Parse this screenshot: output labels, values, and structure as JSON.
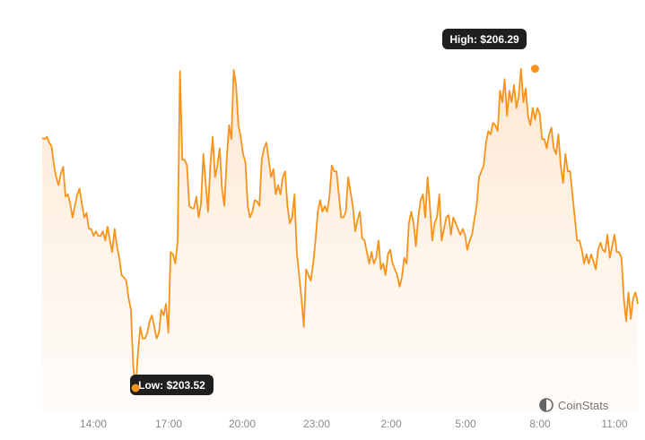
{
  "chart_data": {
    "type": "area",
    "title": "",
    "xlabel": "",
    "ylabel": "",
    "x_ticks": [
      "14:00",
      "17:00",
      "20:00",
      "23:00",
      "2:00",
      "5:00",
      "8:00",
      "11:00"
    ],
    "ylim": [
      203.45,
      206.42
    ],
    "grid": false,
    "legend": "none",
    "series": [
      {
        "color": "#f7931a",
        "values": [
          205.69,
          205.68,
          205.7,
          205.65,
          205.62,
          205.46,
          205.35,
          205.28,
          205.38,
          205.44,
          205.18,
          205.2,
          205.12,
          205.0,
          205.1,
          205.2,
          205.25,
          205.12,
          205.0,
          205.04,
          204.9,
          204.9,
          204.84,
          204.88,
          204.84,
          204.84,
          204.88,
          204.8,
          204.92,
          204.8,
          204.7,
          204.9,
          204.75,
          204.65,
          204.5,
          204.48,
          204.45,
          204.3,
          204.2,
          203.7,
          203.52,
          203.82,
          204.05,
          203.95,
          203.95,
          204.0,
          204.1,
          204.15,
          204.05,
          203.95,
          204.0,
          204.2,
          204.15,
          204.25,
          204.0,
          204.7,
          204.68,
          204.6,
          204.8,
          206.27,
          205.5,
          205.5,
          205.45,
          205.1,
          205.08,
          205.08,
          205.18,
          205.0,
          205.12,
          205.55,
          205.3,
          205.05,
          205.45,
          205.7,
          205.35,
          205.45,
          205.6,
          205.25,
          205.1,
          205.5,
          205.8,
          205.68,
          206.28,
          206.15,
          205.8,
          205.7,
          205.55,
          205.48,
          205.1,
          205.0,
          205.05,
          205.15,
          205.14,
          205.1,
          205.5,
          205.6,
          205.65,
          205.5,
          205.35,
          205.42,
          205.2,
          205.28,
          205.2,
          205.35,
          205.4,
          205.1,
          204.95,
          205.0,
          205.2,
          204.7,
          204.5,
          204.3,
          204.05,
          204.55,
          204.5,
          204.45,
          204.6,
          204.8,
          205.05,
          205.15,
          205.05,
          205.1,
          205.05,
          205.18,
          205.45,
          205.4,
          205.4,
          205.2,
          205.0,
          205.0,
          205.05,
          205.35,
          205.22,
          205.1,
          204.88,
          204.98,
          205.05,
          204.82,
          204.8,
          204.7,
          204.6,
          204.7,
          204.6,
          204.65,
          204.8,
          204.55,
          204.6,
          204.5,
          204.68,
          204.72,
          204.6,
          204.55,
          204.5,
          204.4,
          204.48,
          204.65,
          204.6,
          204.95,
          205.05,
          204.95,
          204.75,
          205.0,
          205.15,
          205.2,
          205.0,
          205.35,
          205.1,
          204.8,
          204.95,
          205.0,
          205.2,
          204.8,
          204.9,
          205.0,
          205.02,
          204.85,
          205.0,
          204.95,
          204.9,
          204.85,
          204.9,
          204.85,
          204.72,
          204.8,
          204.85,
          204.98,
          205.1,
          205.35,
          205.4,
          205.45,
          205.65,
          205.75,
          205.72,
          205.82,
          205.8,
          205.75,
          206.1,
          206.0,
          206.2,
          205.88,
          206.1,
          206.0,
          206.15,
          205.95,
          206.05,
          206.29,
          206.0,
          206.12,
          205.88,
          205.8,
          205.95,
          205.85,
          205.95,
          205.9,
          205.68,
          205.68,
          205.6,
          205.72,
          205.78,
          205.6,
          205.55,
          205.72,
          205.45,
          205.3,
          205.55,
          205.4,
          205.4,
          205.2,
          205.0,
          204.8,
          204.8,
          204.72,
          204.6,
          204.68,
          204.6,
          204.68,
          204.62,
          204.55,
          204.72,
          204.78,
          204.72,
          204.7,
          204.85,
          204.65,
          204.75,
          204.85,
          204.7,
          204.7,
          204.65,
          204.3,
          204.1,
          204.35,
          204.12,
          204.3,
          204.35,
          204.25
        ]
      }
    ],
    "annotations": {
      "high": {
        "label": "High: $206.29",
        "index": 211,
        "value": 206.29
      },
      "low": {
        "label": "Low: $203.52",
        "index": 40,
        "value": 203.52
      }
    }
  },
  "branding": {
    "name": "CoinStats",
    "icon": "coinstats-logo-icon"
  }
}
